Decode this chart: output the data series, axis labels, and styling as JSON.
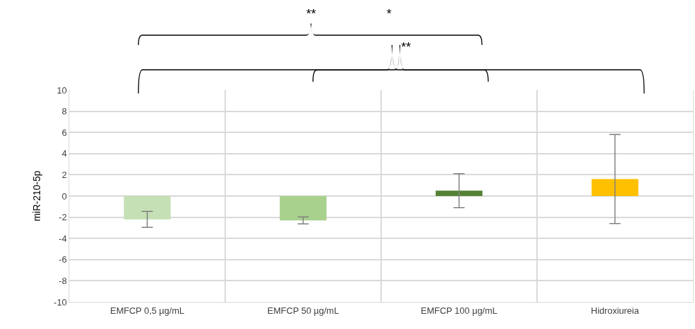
{
  "chart_data": {
    "type": "bar",
    "ylabel": "miR-210-5p",
    "categories": [
      "EMFCP 0,5 µg/mL",
      "EMFCP 50 µg/mL",
      "EMFCP 100 µg/mL",
      "Hidroxiureia"
    ],
    "values": [
      -2.2,
      -2.3,
      0.5,
      1.6
    ],
    "errors": [
      0.75,
      0.33,
      1.6,
      4.2
    ],
    "colors": [
      "#c5e0b4",
      "#a9d18e",
      "#548235",
      "#ffc000"
    ],
    "ylim": [
      -10,
      10
    ],
    "yticks": [
      -10,
      -8,
      -6,
      -4,
      -2,
      0,
      2,
      4,
      6,
      8,
      10
    ],
    "grid": true,
    "annotations": [
      "**",
      "*",
      "**"
    ]
  }
}
